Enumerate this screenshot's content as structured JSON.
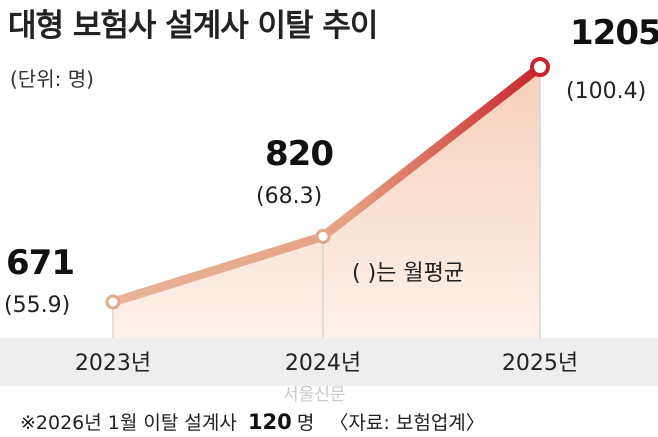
{
  "title": "대형 보험사 설계사 이탈 추이",
  "unit_note": "(단위: 명)",
  "legend_note": "(  )는 월평균",
  "footnote": {
    "prefix": "※2026년 1월 이탈 설계사",
    "value": "120",
    "suffix": "명",
    "source": "〈자료: 보험업계〉"
  },
  "watermark": "서울신문",
  "colors": {
    "line_start": "#e8b49a",
    "line_end": "#c8242c",
    "area_fill": "#fbe6da",
    "band": "#eeeeee",
    "marker_fill": "#ffffff"
  },
  "chart_data": {
    "type": "area",
    "categories": [
      "2023년",
      "2024년",
      "2025년"
    ],
    "values": [
      671,
      820,
      1205
    ],
    "value_labels": [
      "671",
      "820",
      "1205"
    ],
    "monthly_average_labels": [
      "(55.9)",
      "(68.3)",
      "(100.4)"
    ],
    "ylim": [
      500,
      1250
    ]
  }
}
